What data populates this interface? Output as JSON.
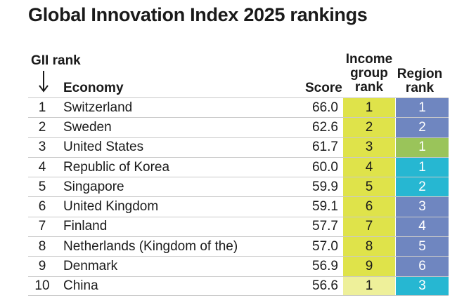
{
  "title": "Global Innovation Index 2025 rankings",
  "headers": {
    "gii_rank": "GII rank",
    "arrow": "↓",
    "economy": "Economy",
    "score": "Score",
    "income_group_rank": "Income group rank",
    "region_rank": "Region rank"
  },
  "colors": {
    "income_high": "#dfe34a",
    "income_upper_middle": "#eef09a",
    "region_europe": "#6f86c0",
    "region_north_america": "#9ac45a",
    "region_asia": "#26b7d2"
  },
  "chart_data": {
    "type": "table",
    "title": "Global Innovation Index 2025 rankings",
    "columns": [
      "GII rank",
      "Economy",
      "Score",
      "Income group rank",
      "Region rank"
    ],
    "rows": [
      {
        "rank": "1",
        "economy": "Switzerland",
        "score": "66.0",
        "income_rank": "1",
        "region_rank": "1",
        "income_color": "#dfe34a",
        "region_color": "#6f86c0"
      },
      {
        "rank": "2",
        "economy": "Sweden",
        "score": "62.6",
        "income_rank": "2",
        "region_rank": "2",
        "income_color": "#dfe34a",
        "region_color": "#6f86c0"
      },
      {
        "rank": "3",
        "economy": "United States",
        "score": "61.7",
        "income_rank": "3",
        "region_rank": "1",
        "income_color": "#dfe34a",
        "region_color": "#9ac45a"
      },
      {
        "rank": "4",
        "economy": "Republic of Korea",
        "score": "60.0",
        "income_rank": "4",
        "region_rank": "1",
        "income_color": "#dfe34a",
        "region_color": "#26b7d2"
      },
      {
        "rank": "5",
        "economy": "Singapore",
        "score": "59.9",
        "income_rank": "5",
        "region_rank": "2",
        "income_color": "#dfe34a",
        "region_color": "#26b7d2"
      },
      {
        "rank": "6",
        "economy": "United Kingdom",
        "score": "59.1",
        "income_rank": "6",
        "region_rank": "3",
        "income_color": "#dfe34a",
        "region_color": "#6f86c0"
      },
      {
        "rank": "7",
        "economy": "Finland",
        "score": "57.7",
        "income_rank": "7",
        "region_rank": "4",
        "income_color": "#dfe34a",
        "region_color": "#6f86c0"
      },
      {
        "rank": "8",
        "economy": "Netherlands (Kingdom of the)",
        "score": "57.0",
        "income_rank": "8",
        "region_rank": "5",
        "income_color": "#dfe34a",
        "region_color": "#6f86c0"
      },
      {
        "rank": "9",
        "economy": "Denmark",
        "score": "56.9",
        "income_rank": "9",
        "region_rank": "6",
        "income_color": "#dfe34a",
        "region_color": "#6f86c0"
      },
      {
        "rank": "10",
        "economy": "China",
        "score": "56.6",
        "income_rank": "1",
        "region_rank": "3",
        "income_color": "#eef09a",
        "region_color": "#26b7d2"
      }
    ]
  }
}
